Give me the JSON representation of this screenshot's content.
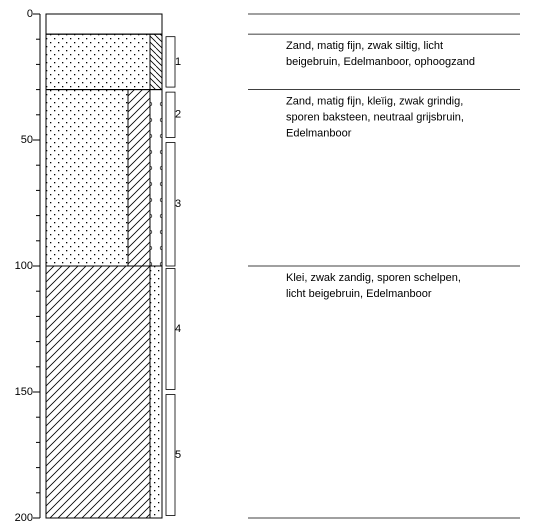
{
  "depth_axis": {
    "lim": [
      0,
      200
    ],
    "ticks": [
      0,
      50,
      100,
      150,
      200
    ]
  },
  "layers": [
    {
      "top": 0,
      "bottom": 8
    },
    {
      "top": 8,
      "bottom": 30,
      "description": [
        "Zand, matig fijn, zwak siltig, licht",
        "beigebruin, Edelmanboor, ophoogzand"
      ]
    },
    {
      "top": 30,
      "bottom": 100,
      "description": [
        "Zand, matig fijn, kleïig, zwak grindig,",
        "sporen baksteen, neutraal grijsbruin,",
        "Edelmanboor"
      ]
    },
    {
      "top": 100,
      "bottom": 200,
      "description": [
        "Klei, zwak zandig, sporen schelpen,",
        "licht beigebruin, Edelmanboor"
      ]
    }
  ],
  "samples": [
    {
      "label": "1",
      "top": 9,
      "bottom": 29
    },
    {
      "label": "2",
      "top": 31,
      "bottom": 49
    },
    {
      "label": "3",
      "top": 51,
      "bottom": 100
    },
    {
      "label": "4",
      "top": 101,
      "bottom": 149
    },
    {
      "label": "5",
      "top": 151,
      "bottom": 199
    }
  ]
}
